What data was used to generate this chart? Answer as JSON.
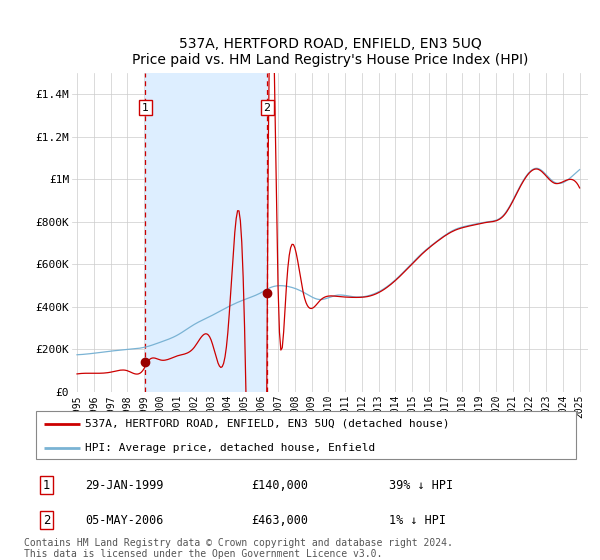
{
  "title": "537A, HERTFORD ROAD, ENFIELD, EN3 5UQ",
  "subtitle": "Price paid vs. HM Land Registry's House Price Index (HPI)",
  "ylim": [
    0,
    1500000
  ],
  "yticks": [
    0,
    200000,
    400000,
    600000,
    800000,
    1000000,
    1200000,
    1400000
  ],
  "ytick_labels": [
    "£0",
    "£200K",
    "£400K",
    "£600K",
    "£800K",
    "£1M",
    "£1.2M",
    "£1.4M"
  ],
  "sale1_date": "29-JAN-1999",
  "sale1_price": 140000,
  "sale1_pct": "39% ↓ HPI",
  "sale1_year": 1999.08,
  "sale2_date": "05-MAY-2006",
  "sale2_price": 463000,
  "sale2_pct": "1% ↓ HPI",
  "sale2_year": 2006.35,
  "line_color_property": "#cc0000",
  "line_color_hpi": "#7ab3d4",
  "shade_color": "#ddeeff",
  "dot_color_property": "#990000",
  "vline_color": "#cc0000",
  "background_color": "#ffffff",
  "grid_color": "#cccccc",
  "legend_label_property": "537A, HERTFORD ROAD, ENFIELD, EN3 5UQ (detached house)",
  "legend_label_hpi": "HPI: Average price, detached house, Enfield",
  "footnote": "Contains HM Land Registry data © Crown copyright and database right 2024.\nThis data is licensed under the Open Government Licence v3.0.",
  "xmin": 1995,
  "xmax": 2025
}
